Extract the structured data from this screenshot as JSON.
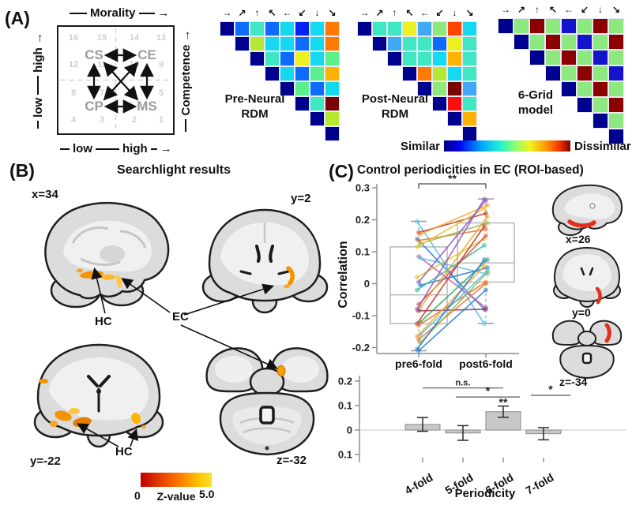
{
  "panelA": {
    "label": "(A)",
    "schematic": {
      "axis_top": "Morality",
      "axis_right": "Competence",
      "left_high": "high",
      "left_low": "low",
      "bottom_low": "low",
      "bottom_high": "high",
      "quadrant_tl": "CS",
      "quadrant_tr": "CE",
      "quadrant_bl": "CP",
      "quadrant_br": "MS",
      "grid_numbers": [
        [
          "16",
          "15",
          "14",
          "13"
        ],
        [
          "12",
          "11",
          "10",
          "9"
        ],
        [
          "8",
          "7",
          "6",
          "5"
        ],
        [
          "4",
          "3",
          "2",
          "1"
        ]
      ]
    },
    "colorbar": {
      "left_label": "Similar",
      "right_label": "Dissimilar"
    }
  },
  "panelB": {
    "label": "(B)",
    "title": "Searchlight results",
    "slice_labels": [
      "x=34",
      "y=2",
      "y=-22",
      "z=-32"
    ],
    "region_hc": "HC",
    "region_ec": "EC",
    "colorbar": {
      "min": "0",
      "label": "Z-value",
      "max": "5.0"
    }
  },
  "panelC": {
    "label": "(C)",
    "title": "Control periodicities in EC (ROI-based)",
    "slice_labels": [
      "x=26",
      "y=0",
      "z=-34"
    ]
  },
  "palette": {
    "navy": "#00008F",
    "blue": "#0023F5",
    "mblue": "#0D6BFF",
    "lblue": "#3FA9F5",
    "cyan": "#15D9F0",
    "aqua": "#3FE8C3",
    "green": "#5CF08C",
    "lgreen": "#8FE87C",
    "ygreen": "#B4E833",
    "yellow": "#EDF020",
    "amber": "#FFB300",
    "orange": "#FF7A00",
    "orangered": "#FF4400",
    "red": "#F50F0F",
    "darkred": "#7A0403",
    "maroon": "#8B0000",
    "gblue": "#1414CC",
    "ggreen": "#8CE87F"
  },
  "chart_data": [
    {
      "type": "heatmap",
      "name": "pre-neural-rdm",
      "label_line1": "Pre-Neural",
      "label_line2": "RDM",
      "categories": [
        "→",
        "↗",
        "↑",
        "↖",
        "←",
        "↙",
        "↓",
        "↘"
      ],
      "rows": [
        [
          "navy",
          "mblue",
          "aqua",
          "mblue",
          "cyan",
          "blue",
          "cyan",
          "orange"
        ],
        [
          "navy",
          "ygreen",
          "cyan",
          "cyan",
          "mblue",
          "cyan",
          "orange"
        ],
        [
          "navy",
          "aqua",
          "mblue",
          "yellow",
          "cyan",
          "green"
        ],
        [
          "navy",
          "cyan",
          "mblue",
          "green",
          "amber"
        ],
        [
          "navy",
          "green",
          "mblue",
          "cyan"
        ],
        [
          "navy",
          "aqua",
          "darkred"
        ],
        [
          "navy",
          "ygreen"
        ],
        [
          "navy"
        ]
      ]
    },
    {
      "type": "heatmap",
      "name": "post-neural-rdm",
      "label_line1": "Post-Neural",
      "label_line2": "RDM",
      "categories": [
        "→",
        "↗",
        "↑",
        "↖",
        "←",
        "↙",
        "↓",
        "↘"
      ],
      "rows": [
        [
          "navy",
          "aqua",
          "aqua",
          "yellow",
          "lblue",
          "lgreen",
          "orangered",
          "cyan"
        ],
        [
          "navy",
          "lblue",
          "aqua",
          "aqua",
          "mblue",
          "yellow",
          "aqua"
        ],
        [
          "navy",
          "aqua",
          "aqua",
          "cyan",
          "amber",
          "aqua"
        ],
        [
          "navy",
          "orange",
          "ygreen",
          "cyan",
          "aqua"
        ],
        [
          "navy",
          "lgreen",
          "darkred",
          "lblue"
        ],
        [
          "navy",
          "red",
          "aqua"
        ],
        [
          "navy",
          "amber"
        ],
        [
          "navy"
        ]
      ]
    },
    {
      "type": "heatmap",
      "name": "six-grid-model",
      "label_line1": "6-Grid",
      "label_line2": "model",
      "categories": [
        "→",
        "↗",
        "↑",
        "↖",
        "←",
        "↙",
        "↓",
        "↘"
      ],
      "rows": [
        [
          "navy",
          "ggreen",
          "maroon",
          "ggreen",
          "gblue",
          "ggreen",
          "maroon",
          "ggreen"
        ],
        [
          "navy",
          "ggreen",
          "maroon",
          "ggreen",
          "gblue",
          "ggreen",
          "maroon"
        ],
        [
          "navy",
          "ggreen",
          "maroon",
          "ggreen",
          "gblue",
          "ggreen"
        ],
        [
          "navy",
          "ggreen",
          "maroon",
          "ggreen",
          "gblue"
        ],
        [
          "navy",
          "ggreen",
          "maroon",
          "ggreen"
        ],
        [
          "navy",
          "ggreen",
          "maroon"
        ],
        [
          "navy",
          "ggreen"
        ],
        [
          "navy"
        ]
      ]
    },
    {
      "type": "line",
      "name": "paired-correlation-plot",
      "ylabel": "Correlation",
      "categories": [
        "pre6-fold",
        "post6-fold"
      ],
      "yticks": [
        "0.3",
        "0.2",
        "0.1",
        "0",
        "-0.1",
        "-0.2"
      ],
      "ylim": [
        -0.25,
        0.3
      ],
      "significance": "**",
      "boxes": [
        {
          "lo": -0.21,
          "q1": -0.125,
          "median": -0.035,
          "q3": 0.115,
          "hi": 0.195
        },
        {
          "lo": -0.125,
          "q1": 0.005,
          "median": 0.065,
          "q3": 0.19,
          "hi": 0.265
        }
      ],
      "pairs": [
        [
          0.195,
          -0.125,
          "#5BC0EB"
        ],
        [
          0.16,
          0.22,
          "#C0392B"
        ],
        [
          0.155,
          0.245,
          "#F5A623"
        ],
        [
          0.14,
          -0.08,
          "#2D7DD2"
        ],
        [
          0.135,
          0.17,
          "#F2722E"
        ],
        [
          0.125,
          0.19,
          "#8CC152"
        ],
        [
          0.115,
          0.235,
          "#E8C51D"
        ],
        [
          0.085,
          -0.075,
          "#C75BAE"
        ],
        [
          0.08,
          0.03,
          "#5BC0EB"
        ],
        [
          0.02,
          0.14,
          "#E8C51D"
        ],
        [
          0.005,
          0.26,
          "#8E5BC0"
        ],
        [
          -0.005,
          0.05,
          "#2D7DD2"
        ],
        [
          -0.02,
          0.12,
          "#33B8A0"
        ],
        [
          -0.065,
          0.15,
          "#D94F4F"
        ],
        [
          -0.075,
          0.21,
          "#F5A623"
        ],
        [
          -0.08,
          0.265,
          "#8E5BC0"
        ],
        [
          -0.085,
          -0.08,
          "#8E3A59"
        ],
        [
          -0.12,
          0.075,
          "#37A862"
        ],
        [
          -0.125,
          0.18,
          "#C0392B"
        ],
        [
          -0.13,
          0.005,
          "#F2722E"
        ],
        [
          -0.16,
          0.04,
          "#5BC0EB"
        ],
        [
          -0.165,
          0.055,
          "#F5A623"
        ],
        [
          -0.175,
          0.0,
          "#F2722E"
        ],
        [
          -0.185,
          0.035,
          "#8CC152"
        ],
        [
          -0.205,
          0.075,
          "#2D7DD2"
        ],
        [
          -0.21,
          -0.02,
          "#2D7DD2"
        ]
      ]
    },
    {
      "type": "bar",
      "name": "periodicity-bars",
      "xlabel": "Periodicity",
      "categories": [
        "4-fold",
        "5-fold",
        "6-fold",
        "7-fold"
      ],
      "values": [
        0.023,
        -0.012,
        0.075,
        -0.015
      ],
      "errors": [
        0.028,
        0.03,
        0.023,
        0.025
      ],
      "yticks": [
        "0.2",
        "0.1",
        "0",
        "-0.1"
      ],
      "ylim": [
        -0.12,
        0.22
      ],
      "sig_spans": [
        {
          "from": 0,
          "to": 2,
          "y": 0.172,
          "label": "n.s."
        },
        {
          "from": 1,
          "to": 2,
          "y": 0.135,
          "label": "*"
        },
        {
          "from": 2,
          "to": 3,
          "y": 0.142,
          "label": "*"
        }
      ],
      "bar_star": {
        "bar": 2,
        "y": 0.112,
        "label": "**"
      }
    }
  ]
}
